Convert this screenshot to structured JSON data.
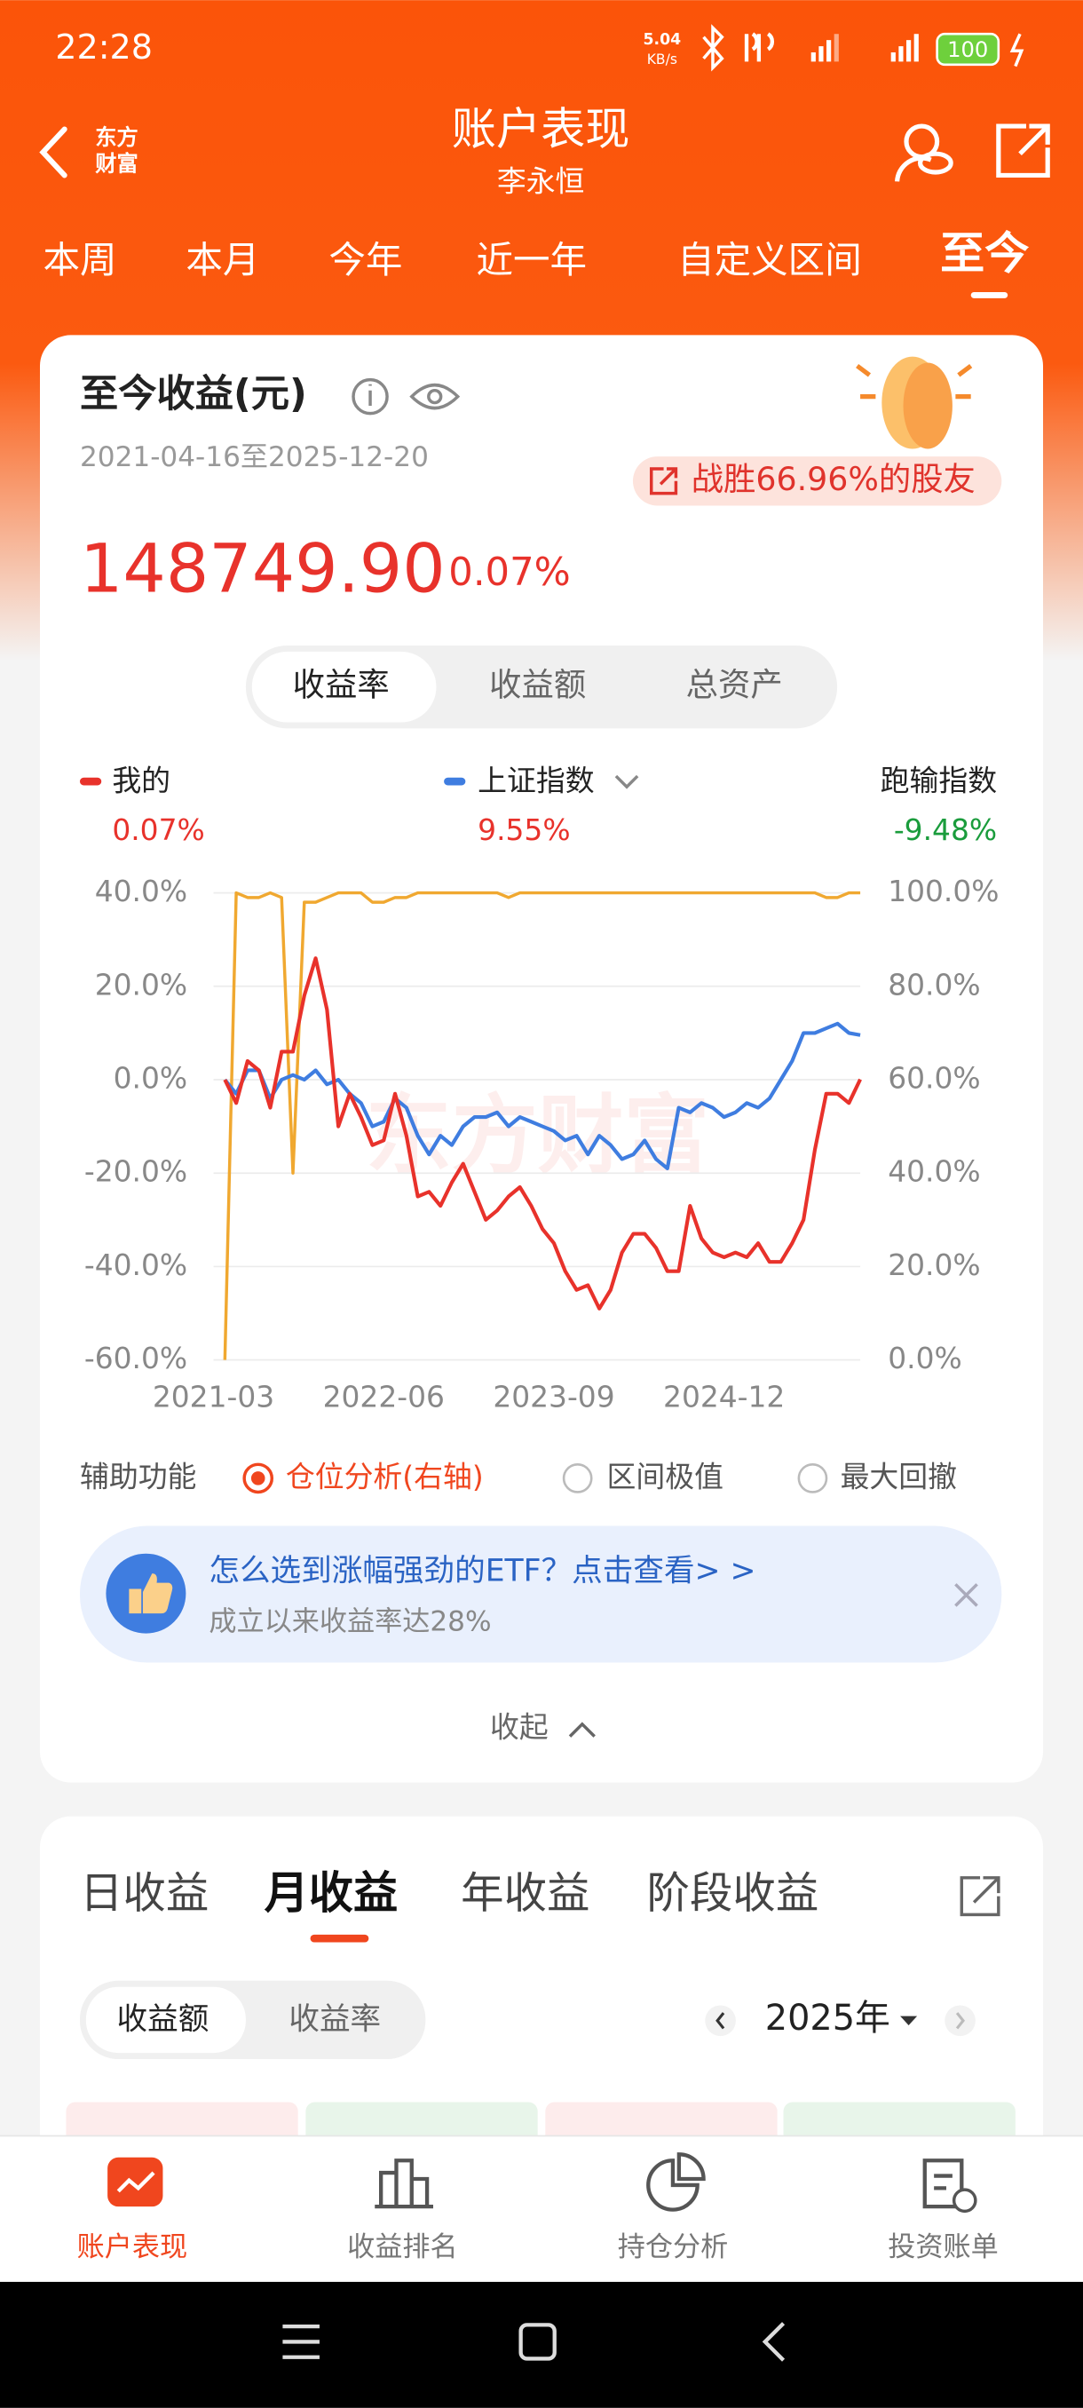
{
  "status_bar": {
    "time": "22:28",
    "net_speed": "5.04",
    "net_unit": "KB/s",
    "battery": "100"
  },
  "header": {
    "logo_top": "东方",
    "logo_bottom": "财富",
    "title": "账户表现",
    "subtitle": "李永恒"
  },
  "period_tabs": [
    "本周",
    "本月",
    "今年",
    "近一年",
    "自定义区间",
    "至今"
  ],
  "summary": {
    "title": "至今收益(元)",
    "date_range": "2021-04-16至2025-12-20",
    "badge": "战胜66.96%的股友",
    "amount": "148749.90",
    "rate": "0.07%"
  },
  "segment": [
    "收益率",
    "收益额",
    "总资产"
  ],
  "legend": {
    "mine_value": "0.07%",
    "index_value": "9.55%",
    "lag_label": "跑输指数",
    "lag_value": "-9.48%"
  },
  "chart_data": {
    "type": "line",
    "watermark": "东方财富",
    "x": [
      "2021-04",
      "2021-05",
      "2021-06",
      "2021-07",
      "2021-08",
      "2021-09",
      "2021-10",
      "2021-11",
      "2021-12",
      "2022-01",
      "2022-02",
      "2022-03",
      "2022-04",
      "2022-05",
      "2022-06",
      "2022-07",
      "2022-08",
      "2022-09",
      "2022-10",
      "2022-11",
      "2022-12",
      "2023-01",
      "2023-02",
      "2023-03",
      "2023-04",
      "2023-05",
      "2023-06",
      "2023-07",
      "2023-08",
      "2023-09",
      "2023-10",
      "2023-11",
      "2023-12",
      "2024-01",
      "2024-02",
      "2024-03",
      "2024-04",
      "2024-05",
      "2024-06",
      "2024-07",
      "2024-08",
      "2024-09",
      "2024-10",
      "2024-11",
      "2024-12",
      "2025-01",
      "2025-02",
      "2025-03",
      "2025-04",
      "2025-05",
      "2025-06",
      "2025-07",
      "2025-08",
      "2025-09",
      "2025-10",
      "2025-11",
      "2025-12"
    ],
    "xlim": [
      "2021-03",
      "2025-12"
    ],
    "xticks": [
      "2021-03",
      "2022-06",
      "2023-09",
      "2024-12"
    ],
    "ylim": [
      -60,
      40
    ],
    "yticks": [
      {
        "value": 40,
        "label": "40.0%"
      },
      {
        "value": 20,
        "label": "20.0%"
      },
      {
        "value": 0,
        "label": "0.0%"
      },
      {
        "value": -20,
        "label": "-20.0%"
      },
      {
        "value": -40,
        "label": "-40.0%"
      },
      {
        "value": -60,
        "label": "-60.0%"
      }
    ],
    "y2lim": [
      0,
      100
    ],
    "y2ticks": [
      {
        "value": 100,
        "label": "100.0%"
      },
      {
        "value": 80,
        "label": "80.0%"
      },
      {
        "value": 60,
        "label": "60.0%"
      },
      {
        "value": 40,
        "label": "40.0%"
      },
      {
        "value": 20,
        "label": "20.0%"
      },
      {
        "value": 0,
        "label": "0.0%"
      }
    ],
    "grid": true,
    "series": [
      {
        "name": "我的",
        "color": "#e8322b",
        "values": [
          0,
          -5,
          4,
          2,
          -6,
          6,
          6,
          18,
          26,
          15,
          -10,
          -3,
          -8,
          -14,
          -13,
          -3,
          -12,
          -25,
          -24,
          -27,
          -22,
          -18,
          -24,
          -30,
          -28,
          -25,
          -23,
          -27,
          -32,
          -35,
          -41,
          -45,
          -44,
          -49,
          -45,
          -37,
          -33,
          -33,
          -36,
          -41,
          -41,
          -27,
          -34,
          -37,
          -38,
          -37,
          -38,
          -35,
          -39,
          -39,
          -35,
          -30,
          -15,
          -3,
          -3,
          -5,
          0.07
        ]
      },
      {
        "name": "上证指数",
        "color": "#3f7de0",
        "values": [
          0,
          -3,
          2,
          2,
          -4,
          0,
          1,
          0,
          2,
          -1,
          0,
          -3,
          -5,
          -10,
          -9,
          -4,
          -6,
          -12,
          -16,
          -12,
          -14,
          -10,
          -8,
          -8,
          -7,
          -10,
          -8,
          -9,
          -10,
          -11,
          -13,
          -12,
          -16,
          -12,
          -14,
          -17,
          -16,
          -13,
          -17,
          -19,
          -6,
          -7,
          -5,
          -6,
          -8,
          -7,
          -5,
          -6,
          -4,
          0,
          4,
          10,
          10,
          11,
          12,
          10,
          9.55
        ]
      },
      {
        "color": "#f0a830",
        "axis": "y2",
        "values": [
          0,
          100,
          99,
          99,
          100,
          99,
          40,
          98,
          98,
          99,
          100,
          100,
          100,
          98,
          98,
          99,
          99,
          100,
          100,
          100,
          100,
          100,
          100,
          100,
          100,
          99,
          100,
          100,
          100,
          100,
          100,
          100,
          100,
          100,
          100,
          100,
          100,
          100,
          100,
          100,
          100,
          100,
          100,
          100,
          100,
          100,
          100,
          100,
          100,
          100,
          100,
          100,
          100,
          99,
          99,
          100,
          100
        ]
      }
    ]
  },
  "aux": {
    "label": "辅助功能",
    "options": [
      "仓位分析(右轴)",
      "区间极值",
      "最大回撤"
    ]
  },
  "banner": {
    "title": "怎么选到涨幅强劲的ETF？点击查看> >",
    "subtitle": "成立以来收益率达28%"
  },
  "collapse": "收起",
  "income_tabs": [
    "日收益",
    "月收益",
    "年收益",
    "阶段收益"
  ],
  "income_segment": [
    "收益额",
    "收益率"
  ],
  "year": "2025年",
  "bottom_nav": [
    "账户表现",
    "收益排名",
    "持仓分析",
    "投资账单"
  ]
}
